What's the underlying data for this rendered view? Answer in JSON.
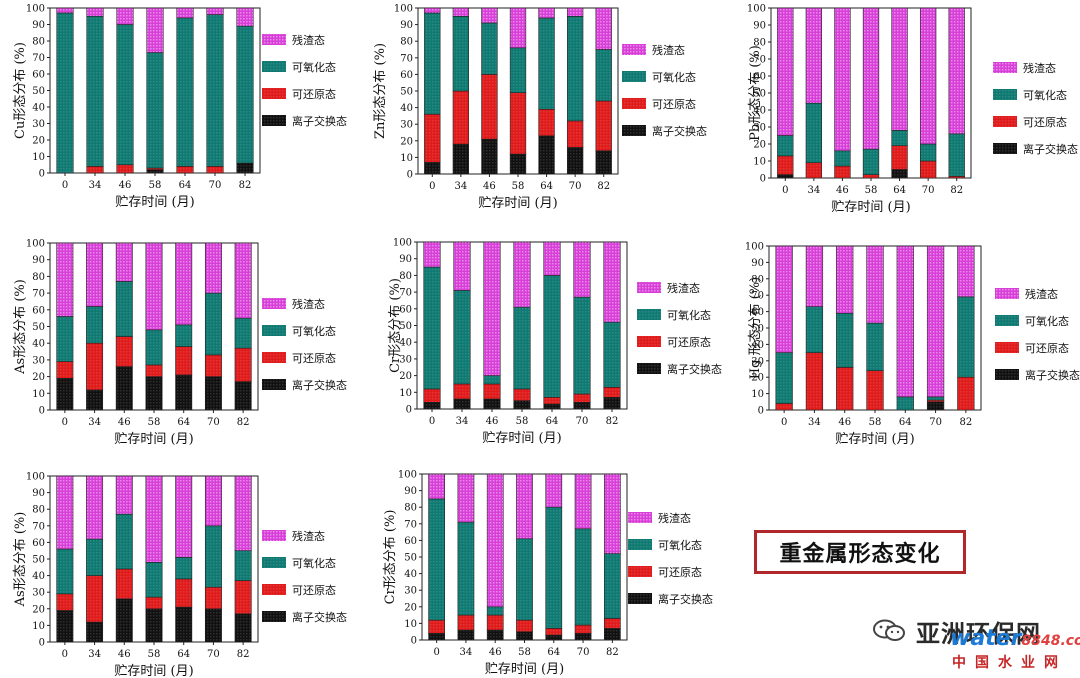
{
  "chart_data": [
    {
      "type": "bar",
      "stacked": true,
      "categories": [
        "0",
        "34",
        "46",
        "58",
        "64",
        "70",
        "82"
      ],
      "ylabel": "Cu形态分布 (%)",
      "xlabel": "贮存时间 (月)",
      "ylim": [
        0,
        100
      ],
      "series": [
        {
          "name": "离子交换态",
          "values": [
            0,
            0,
            0,
            2,
            0,
            0,
            6
          ]
        },
        {
          "name": "可还原态",
          "values": [
            0,
            4,
            5,
            1,
            4,
            4,
            0
          ]
        },
        {
          "name": "可氧化态",
          "values": [
            97,
            91,
            85,
            70,
            90,
            92,
            83
          ]
        },
        {
          "name": "残渣态",
          "values": [
            3,
            5,
            10,
            27,
            6,
            4,
            11
          ]
        }
      ]
    },
    {
      "type": "bar",
      "stacked": true,
      "categories": [
        "0",
        "34",
        "46",
        "58",
        "64",
        "70",
        "82"
      ],
      "ylabel": "Zn形态分布 (%)",
      "xlabel": "贮存时间 (月)",
      "ylim": [
        0,
        100
      ],
      "series": [
        {
          "name": "离子交换态",
          "values": [
            7,
            18,
            21,
            12,
            23,
            16,
            14
          ]
        },
        {
          "name": "可还原态",
          "values": [
            29,
            32,
            39,
            37,
            16,
            16,
            30
          ]
        },
        {
          "name": "可氧化态",
          "values": [
            61,
            45,
            31,
            27,
            55,
            63,
            31
          ]
        },
        {
          "name": "残渣态",
          "values": [
            3,
            5,
            9,
            24,
            6,
            5,
            25
          ]
        }
      ]
    },
    {
      "type": "bar",
      "stacked": true,
      "categories": [
        "0",
        "34",
        "46",
        "58",
        "64",
        "70",
        "82"
      ],
      "ylabel": "Pb形态分布 (%)",
      "xlabel": "贮存时间 (月)",
      "ylim": [
        0,
        100
      ],
      "series": [
        {
          "name": "离子交换态",
          "values": [
            2,
            0,
            0,
            0,
            5,
            0,
            0
          ]
        },
        {
          "name": "可还原态",
          "values": [
            11,
            9,
            7,
            2,
            14,
            10,
            1
          ]
        },
        {
          "name": "可氧化态",
          "values": [
            12,
            35,
            9,
            15,
            9,
            10,
            25
          ]
        },
        {
          "name": "残渣态",
          "values": [
            75,
            56,
            84,
            83,
            72,
            80,
            74
          ]
        }
      ]
    },
    {
      "type": "bar",
      "stacked": true,
      "categories": [
        "0",
        "34",
        "46",
        "58",
        "64",
        "70",
        "82"
      ],
      "ylabel": "As形态分布 (%)",
      "xlabel": "贮存时间 (月)",
      "ylim": [
        0,
        100
      ],
      "series": [
        {
          "name": "离子交换态",
          "values": [
            19,
            12,
            26,
            20,
            21,
            20,
            17
          ]
        },
        {
          "name": "可还原态",
          "values": [
            10,
            28,
            18,
            7,
            17,
            13,
            20
          ]
        },
        {
          "name": "可氧化态",
          "values": [
            27,
            22,
            33,
            21,
            13,
            37,
            18
          ]
        },
        {
          "name": "残渣态",
          "values": [
            44,
            38,
            23,
            52,
            49,
            30,
            45
          ]
        }
      ]
    },
    {
      "type": "bar",
      "stacked": true,
      "categories": [
        "0",
        "34",
        "46",
        "58",
        "64",
        "70",
        "82"
      ],
      "ylabel": "Cr形态分布 (%)",
      "xlabel": "贮存时间 (月)",
      "ylim": [
        0,
        100
      ],
      "series": [
        {
          "name": "离子交换态",
          "values": [
            4,
            6,
            6,
            5,
            3,
            4,
            7
          ]
        },
        {
          "name": "可还原态",
          "values": [
            8,
            9,
            9,
            7,
            4,
            5,
            6
          ]
        },
        {
          "name": "可氧化态",
          "values": [
            73,
            56,
            5,
            49,
            73,
            58,
            39
          ]
        },
        {
          "name": "残渣态",
          "values": [
            15,
            29,
            80,
            39,
            20,
            33,
            48
          ]
        }
      ]
    },
    {
      "type": "bar",
      "stacked": true,
      "categories": [
        "0",
        "34",
        "46",
        "58",
        "64",
        "70",
        "82"
      ],
      "ylabel": "Hg 形态分布 (%)",
      "xlabel": "贮存时间 (月)",
      "ylim": [
        0,
        100
      ],
      "series": [
        {
          "name": "离子交换态",
          "values": [
            0,
            0,
            0,
            0,
            0,
            5,
            0
          ]
        },
        {
          "name": "可还原态",
          "values": [
            4,
            35,
            26,
            24,
            0,
            1,
            20
          ]
        },
        {
          "name": "可氧化态",
          "values": [
            31,
            28,
            33,
            29,
            8,
            2,
            49
          ]
        },
        {
          "name": "残渣态",
          "values": [
            65,
            37,
            41,
            47,
            92,
            92,
            31
          ]
        }
      ]
    },
    {
      "type": "bar",
      "stacked": true,
      "categories": [
        "0",
        "34",
        "46",
        "58",
        "64",
        "70",
        "82"
      ],
      "ylabel": "As形态分布 (%)",
      "xlabel": "贮存时间 (月)",
      "ylim": [
        0,
        100
      ],
      "series": [
        {
          "name": "离子交换态",
          "values": [
            19,
            12,
            26,
            20,
            21,
            20,
            17
          ]
        },
        {
          "name": "可还原态",
          "values": [
            10,
            28,
            18,
            7,
            17,
            13,
            20
          ]
        },
        {
          "name": "可氧化态",
          "values": [
            27,
            22,
            33,
            21,
            13,
            37,
            18
          ]
        },
        {
          "name": "残渣态",
          "values": [
            44,
            38,
            23,
            52,
            49,
            30,
            45
          ]
        }
      ]
    },
    {
      "type": "bar",
      "stacked": true,
      "categories": [
        "0",
        "34",
        "46",
        "58",
        "64",
        "70",
        "82"
      ],
      "ylabel": "Cr形态分布 (%)",
      "xlabel": "贮存时间 (月)",
      "ylim": [
        0,
        100
      ],
      "series": [
        {
          "name": "离子交换态",
          "values": [
            4,
            6,
            6,
            5,
            3,
            4,
            7
          ]
        },
        {
          "name": "可还原态",
          "values": [
            8,
            9,
            9,
            7,
            4,
            5,
            6
          ]
        },
        {
          "name": "可氧化态",
          "values": [
            73,
            56,
            5,
            49,
            73,
            58,
            39
          ]
        },
        {
          "name": "残渣态",
          "values": [
            15,
            29,
            80,
            39,
            20,
            33,
            48
          ]
        }
      ]
    }
  ],
  "colors": {
    "离子交换态": "#111111",
    "可还原态": "#e01b1b",
    "可氧化态": "#0f7a72",
    "残渣态": "#d83fd8"
  },
  "yticks": [
    "0",
    "10",
    "20",
    "30",
    "40",
    "50",
    "60",
    "70",
    "80",
    "90",
    "100"
  ],
  "summary_box": "重金属形态变化",
  "watermark": {
    "name": "亚洲环保网",
    "site_main": "water",
    "site_num": "8848",
    "site_tld": ".com",
    "site_cn": "中国水业网"
  }
}
